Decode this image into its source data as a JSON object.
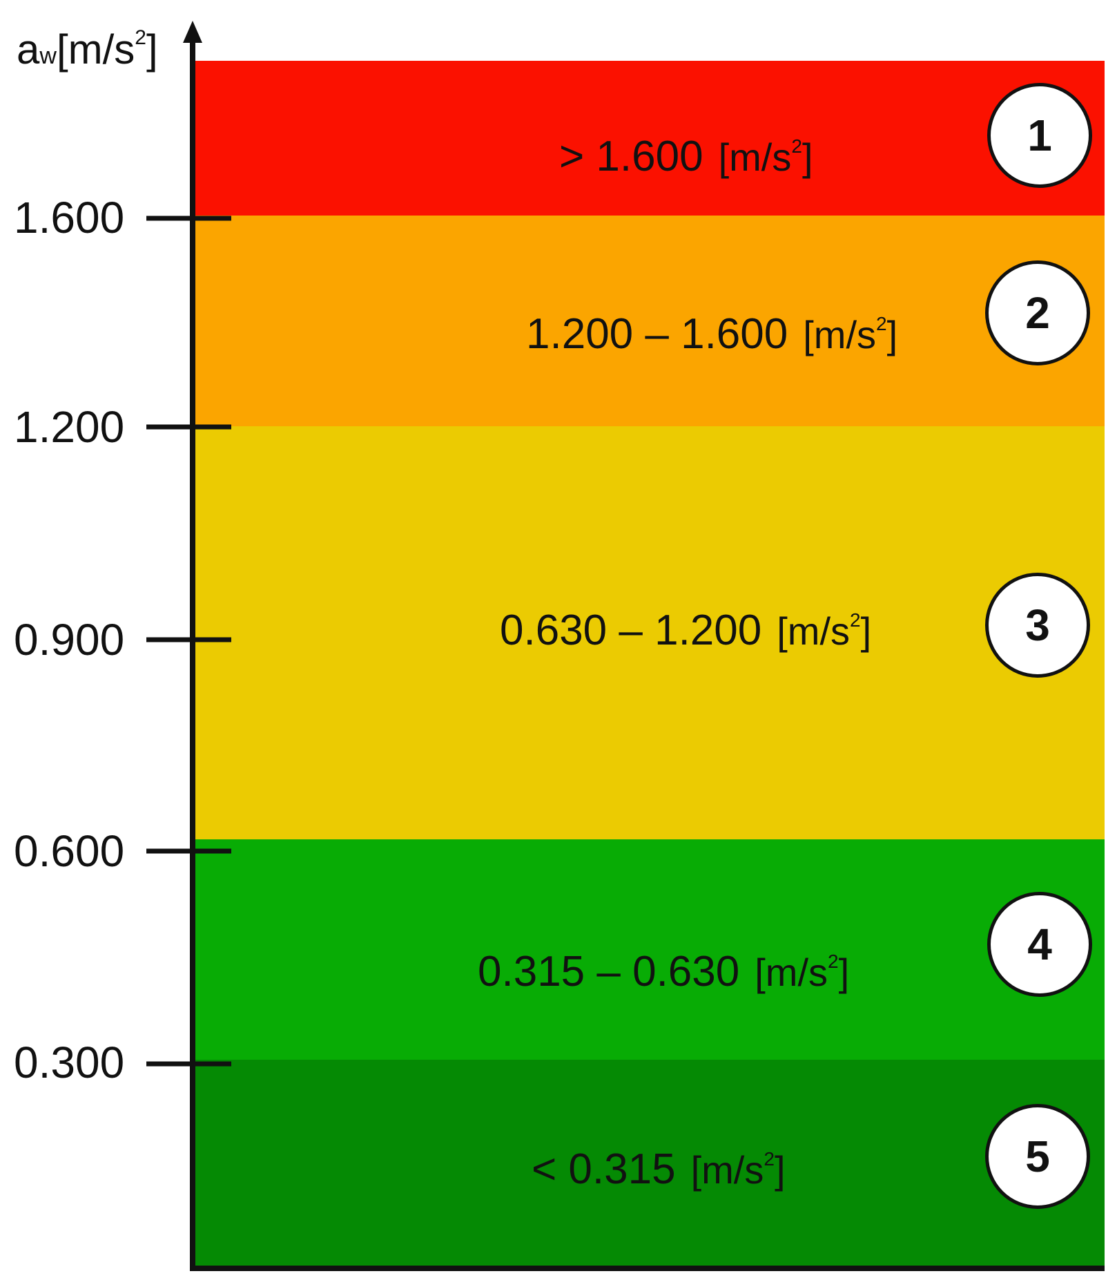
{
  "chart_data": {
    "type": "bar",
    "ylabel": {
      "main": "a",
      "sub": "w",
      "unit_open": "[m/s",
      "unit_sup": "2",
      "unit_close": "]"
    },
    "ytick_labels": [
      "1.600",
      "1.200",
      "0.900",
      "0.600",
      "0.300"
    ],
    "bands": [
      {
        "id": "1",
        "label": "> 1.600",
        "unit": "[m/s",
        "unit_sup": "2",
        "unit_close": "]",
        "color": "#fb1100"
      },
      {
        "id": "2",
        "label": "1.200 – 1.600",
        "unit": "[m/s",
        "unit_sup": "2",
        "unit_close": "]",
        "color": "#fba500"
      },
      {
        "id": "3",
        "label": "0.630 – 1.200",
        "unit": "[m/s",
        "unit_sup": "2",
        "unit_close": "]",
        "color": "#ebcb02"
      },
      {
        "id": "4",
        "label": "0.315 – 0.630",
        "unit": "[m/s",
        "unit_sup": "2",
        "unit_close": "]",
        "color": "#08ac05"
      },
      {
        "id": "5",
        "label": "< 0.315",
        "unit": "[m/s",
        "unit_sup": "2",
        "unit_close": "]",
        "color": "#058a04"
      }
    ]
  }
}
